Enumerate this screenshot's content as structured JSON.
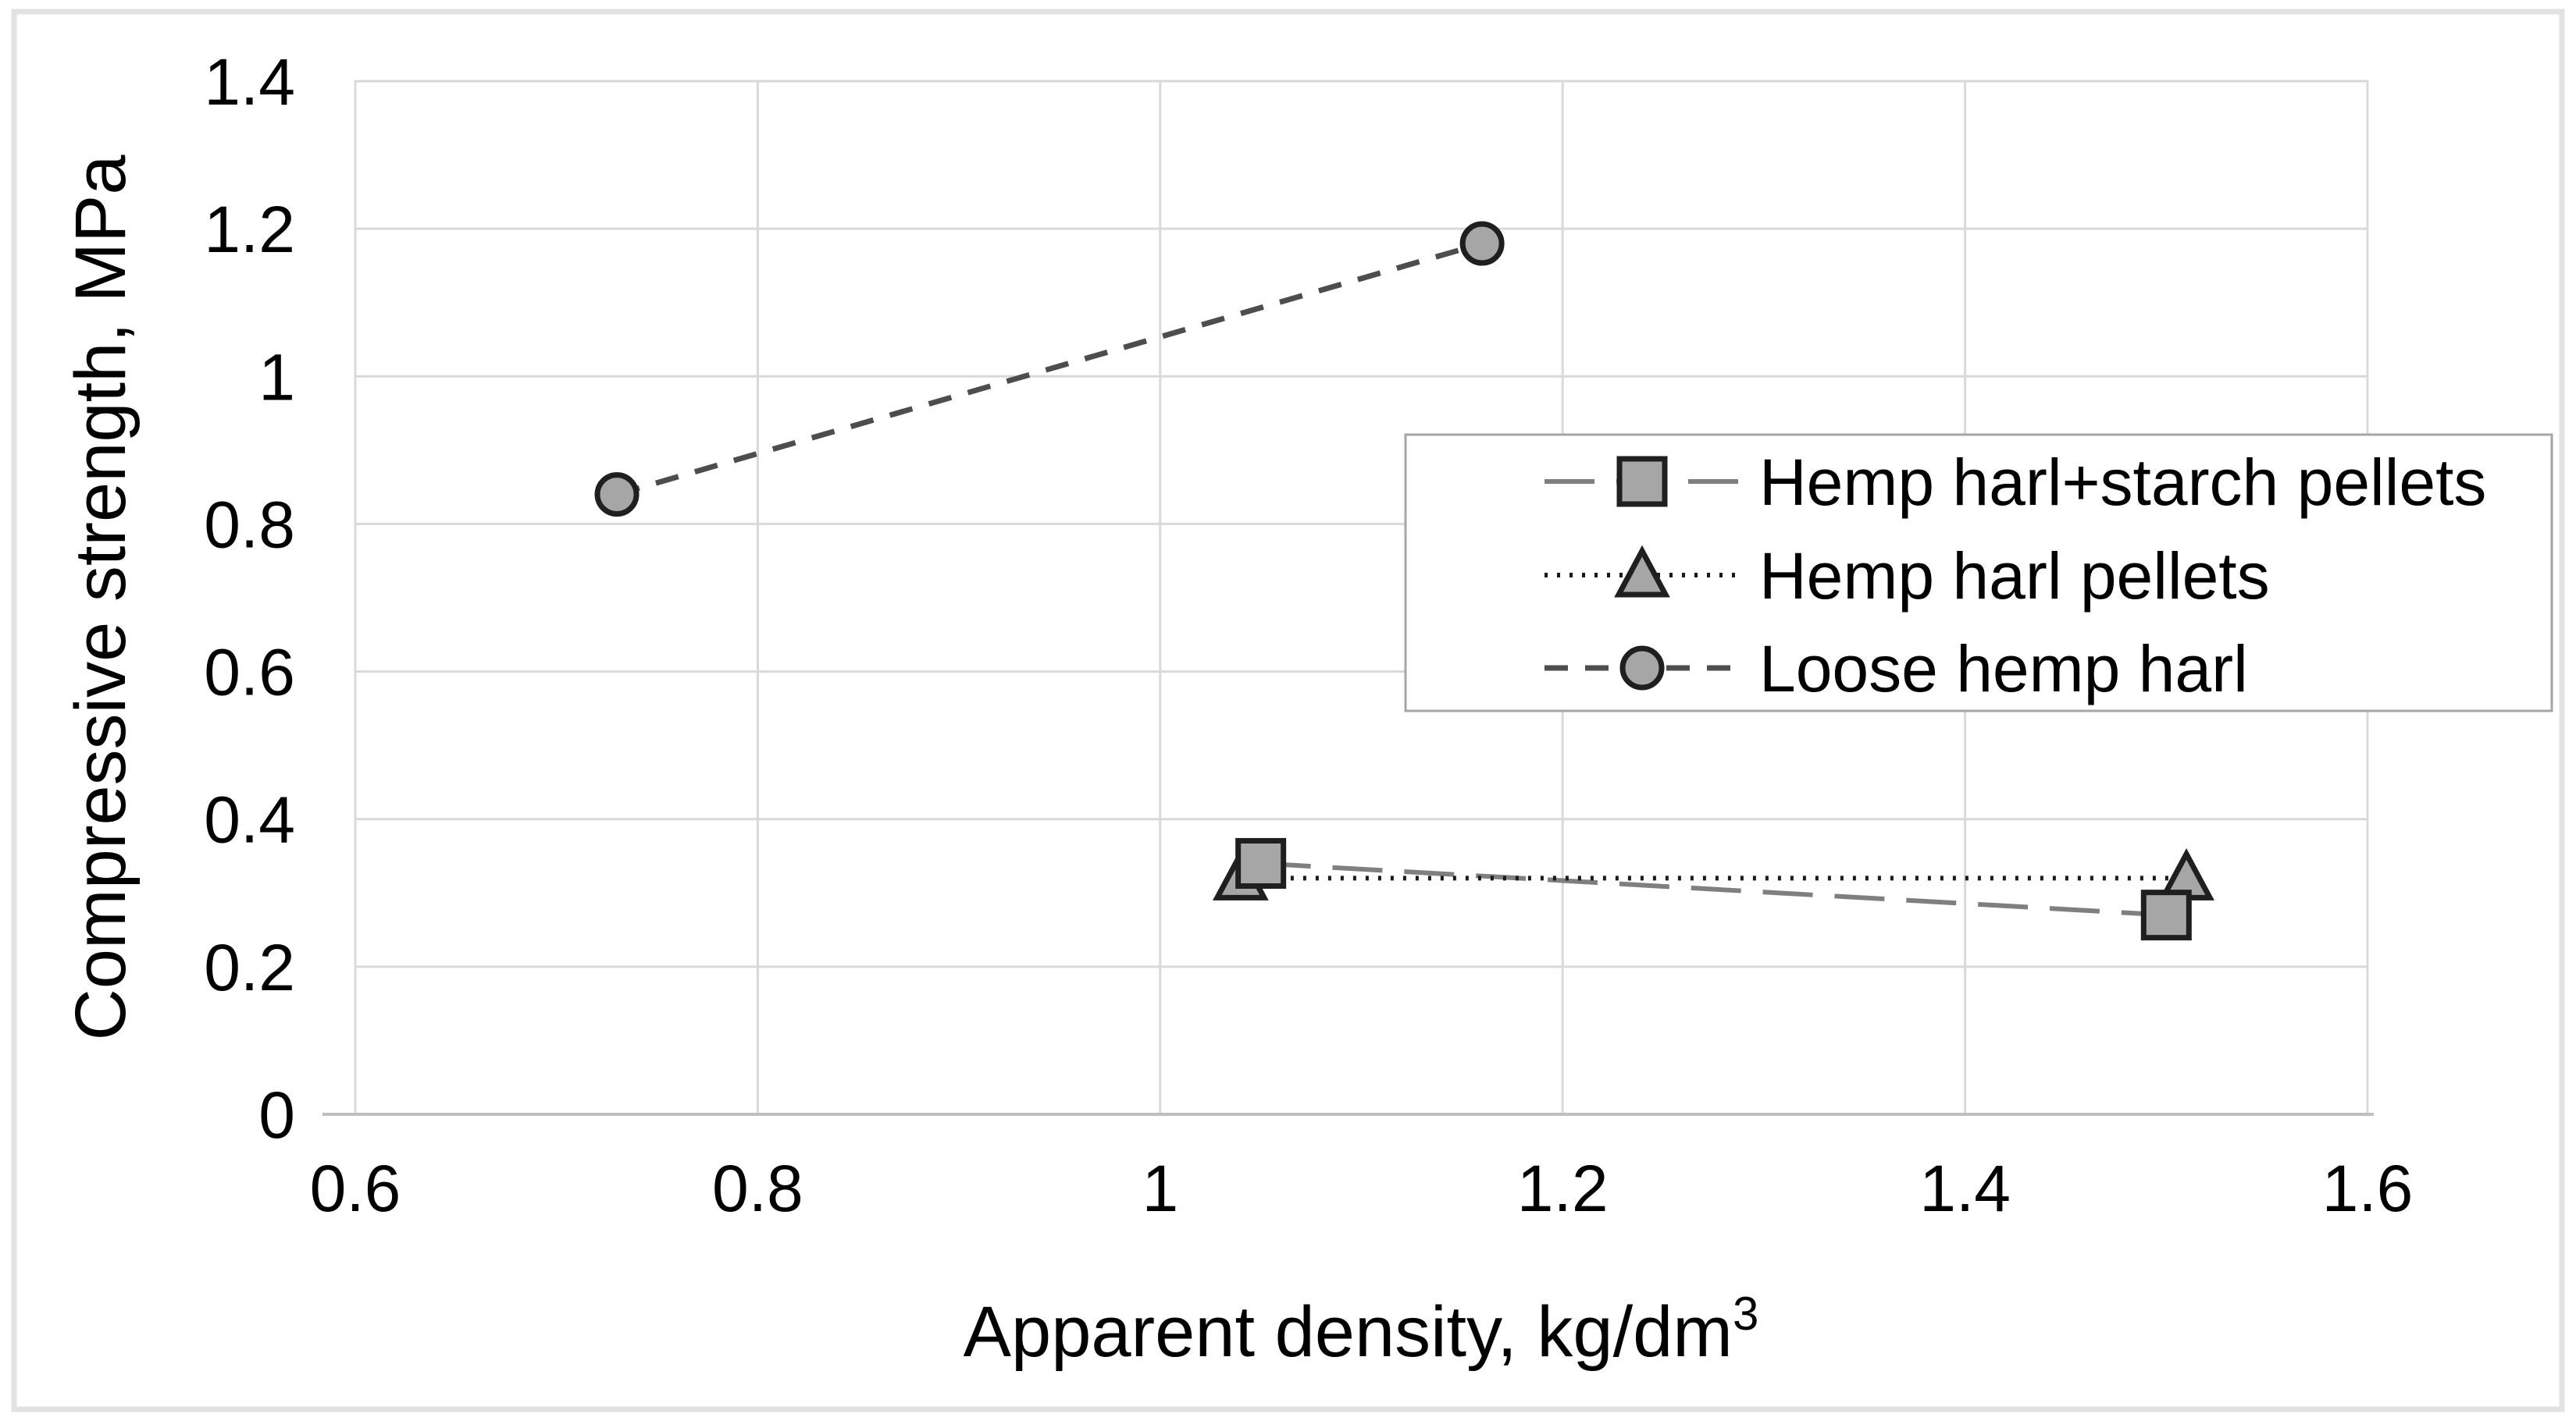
{
  "figure": {
    "background": "#ffffff",
    "outer_border_color": "#e2e2e2"
  },
  "chart_data": {
    "type": "scatter",
    "title": "",
    "xlabel": "Apparent density, kg/dm",
    "xlabel_superscript": "3",
    "ylabel": "Compressive strength, MPa",
    "xlim": [
      0.6,
      1.6
    ],
    "ylim": [
      0,
      1.4
    ],
    "xticks": [
      0.6,
      0.8,
      1.0,
      1.2,
      1.4,
      1.6
    ],
    "xtick_labels": [
      "0.6",
      "0.8",
      "1",
      "1.2",
      "1.4",
      "1.6"
    ],
    "yticks": [
      0,
      0.2,
      0.4,
      0.6,
      0.8,
      1.0,
      1.2,
      1.4
    ],
    "ytick_labels": [
      "0",
      "0.2",
      "0.4",
      "0.6",
      "0.8",
      "1",
      "1.2",
      "1.4"
    ],
    "grid": true,
    "gridline_color": "#d9d9d9",
    "axis_line_color": "#bfbfbf",
    "text_color": "#000000",
    "marker_fill": "#a6a6a6",
    "marker_stroke": "#1f1f1f",
    "legend": {
      "position": "inside-right",
      "background": "#ffffff",
      "border_color": "#a6a6a6",
      "entries": [
        "Hemp harl+starch pellets",
        "Hemp harl pellets",
        "Loose hemp harl"
      ]
    },
    "series": [
      {
        "name": "Hemp harl+starch pellets",
        "marker": "square",
        "line_style": "dashed",
        "line_color": "#7f7f7f",
        "line_width": 6,
        "dash": [
          64,
          28
        ],
        "points": [
          [
            1.05,
            0.34
          ],
          [
            1.5,
            0.27
          ]
        ]
      },
      {
        "name": "Hemp harl pellets",
        "marker": "triangle",
        "line_style": "dotted",
        "line_color": "#1a1a1a",
        "line_width": 6,
        "dash": [
          4,
          12
        ],
        "points": [
          [
            1.04,
            0.32
          ],
          [
            1.51,
            0.32
          ]
        ]
      },
      {
        "name": "Loose hemp harl",
        "marker": "circle",
        "line_style": "dashed",
        "line_color": "#4d4d4d",
        "line_width": 7,
        "dash": [
          30,
          22
        ],
        "points": [
          [
            0.73,
            0.84
          ],
          [
            1.16,
            1.18
          ]
        ]
      }
    ]
  }
}
